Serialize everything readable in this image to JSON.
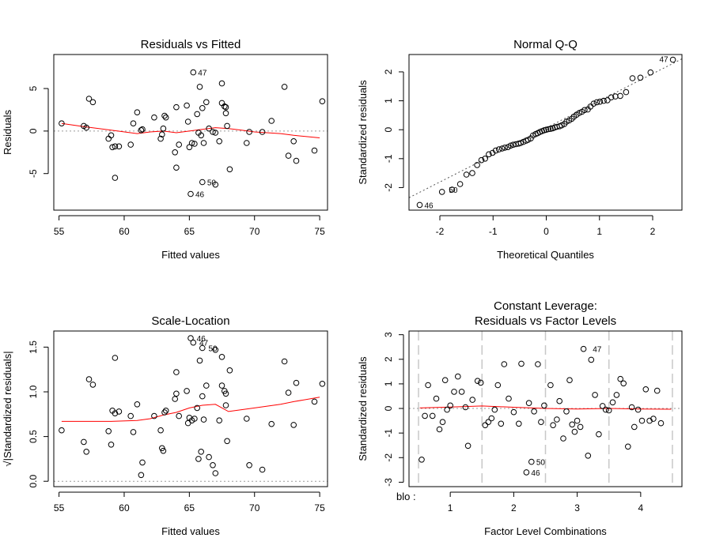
{
  "chart_data": [
    {
      "type": "scatter",
      "title": "Residuals vs Fitted",
      "xlabel": "Fitted values",
      "ylabel": "Residuals",
      "xlim": [
        54.6,
        75.6
      ],
      "ylim": [
        -9.3,
        9.0
      ],
      "xticks": [
        55,
        60,
        65,
        70,
        75
      ],
      "yticks": [
        -5,
        0,
        5
      ],
      "labels": [
        {
          "x": 65.3,
          "y": 6.9,
          "text": "47"
        },
        {
          "x": 66.0,
          "y": -6.0,
          "text": "50"
        },
        {
          "x": 65.1,
          "y": -7.4,
          "text": "46"
        }
      ],
      "smooth": [
        [
          55.2,
          0.9
        ],
        [
          57,
          0.5
        ],
        [
          59,
          0.1
        ],
        [
          61,
          -0.3
        ],
        [
          62,
          -0.1
        ],
        [
          63,
          0.0
        ],
        [
          64,
          -0.2
        ],
        [
          65,
          0.0
        ],
        [
          66,
          0.2
        ],
        [
          67,
          0.4
        ],
        [
          68,
          0.3
        ],
        [
          69,
          0.1
        ],
        [
          70,
          -0.1
        ],
        [
          72,
          -0.3
        ],
        [
          73,
          -0.5
        ],
        [
          75,
          -0.8
        ]
      ],
      "points": [
        [
          55.2,
          0.9
        ],
        [
          56.9,
          0.6
        ],
        [
          57.1,
          0.4
        ],
        [
          57.3,
          3.8
        ],
        [
          57.6,
          3.4
        ],
        [
          58.8,
          -0.9
        ],
        [
          59.0,
          -0.5
        ],
        [
          59.1,
          -1.9
        ],
        [
          59.3,
          -1.8
        ],
        [
          59.3,
          -5.5
        ],
        [
          59.6,
          -1.8
        ],
        [
          60.5,
          -1.6
        ],
        [
          60.7,
          0.9
        ],
        [
          61.0,
          2.2
        ],
        [
          61.3,
          0.1
        ],
        [
          61.4,
          0.2
        ],
        [
          62.3,
          1.6
        ],
        [
          62.8,
          -0.9
        ],
        [
          62.9,
          -0.4
        ],
        [
          63.0,
          0.3
        ],
        [
          63.1,
          1.8
        ],
        [
          63.2,
          1.6
        ],
        [
          63.9,
          -2.5
        ],
        [
          64.0,
          2.8
        ],
        [
          64.0,
          -4.3
        ],
        [
          64.2,
          -1.6
        ],
        [
          64.8,
          3.0
        ],
        [
          64.9,
          1.1
        ],
        [
          65.0,
          -1.9
        ],
        [
          65.1,
          -7.4
        ],
        [
          65.2,
          -1.4
        ],
        [
          65.3,
          6.9
        ],
        [
          65.4,
          -1.5
        ],
        [
          65.6,
          2.0
        ],
        [
          65.7,
          -0.2
        ],
        [
          65.8,
          5.2
        ],
        [
          65.9,
          -0.5
        ],
        [
          66.0,
          -6.0
        ],
        [
          66.0,
          2.7
        ],
        [
          66.1,
          -1.4
        ],
        [
          66.3,
          3.4
        ],
        [
          66.5,
          0.3
        ],
        [
          66.8,
          -0.1
        ],
        [
          67.0,
          -0.2
        ],
        [
          67.0,
          -6.3
        ],
        [
          67.3,
          -1.2
        ],
        [
          67.5,
          5.6
        ],
        [
          67.5,
          3.3
        ],
        [
          67.7,
          2.9
        ],
        [
          67.8,
          2.8
        ],
        [
          67.8,
          2.1
        ],
        [
          67.9,
          0.6
        ],
        [
          68.1,
          -4.5
        ],
        [
          69.4,
          -1.4
        ],
        [
          69.6,
          -0.1
        ],
        [
          70.6,
          -0.1
        ],
        [
          71.3,
          1.2
        ],
        [
          72.3,
          5.2
        ],
        [
          72.6,
          -2.9
        ],
        [
          73.0,
          -1.2
        ],
        [
          73.2,
          -3.5
        ],
        [
          74.6,
          -2.3
        ],
        [
          75.2,
          3.5
        ]
      ]
    },
    {
      "type": "scatter",
      "title": "Normal Q-Q",
      "xlabel": "Theoretical Quantiles",
      "ylabel": "Standardized residuals",
      "xlim": [
        -2.58,
        2.55
      ],
      "ylim": [
        -2.78,
        2.6
      ],
      "xticks": [
        -2,
        -1,
        0,
        1,
        2
      ],
      "yticks": [
        -2,
        -1,
        0,
        1,
        2
      ],
      "labels": [
        {
          "x": 2.38,
          "y": 2.42,
          "text": "47"
        },
        {
          "x": -1.92,
          "y": -2.07,
          "text": "50"
        },
        {
          "x": -2.38,
          "y": -2.6,
          "text": "46"
        }
      ],
      "refline": [
        [
          -2.58,
          -2.35
        ],
        [
          2.55,
          2.45
        ]
      ],
      "points": [
        [
          -2.38,
          -2.6
        ],
        [
          -1.96,
          -2.15
        ],
        [
          -1.77,
          -2.07
        ],
        [
          -1.62,
          -1.88
        ],
        [
          -1.5,
          -1.55
        ],
        [
          -1.39,
          -1.5
        ],
        [
          -1.3,
          -1.22
        ],
        [
          -1.22,
          -1.05
        ],
        [
          -1.15,
          -1.0
        ],
        [
          -1.08,
          -0.85
        ],
        [
          -1.01,
          -0.8
        ],
        [
          -0.95,
          -0.72
        ],
        [
          -0.89,
          -0.68
        ],
        [
          -0.83,
          -0.65
        ],
        [
          -0.78,
          -0.62
        ],
        [
          -0.72,
          -0.6
        ],
        [
          -0.67,
          -0.55
        ],
        [
          -0.62,
          -0.52
        ],
        [
          -0.57,
          -0.5
        ],
        [
          -0.52,
          -0.48
        ],
        [
          -0.48,
          -0.46
        ],
        [
          -0.43,
          -0.42
        ],
        [
          -0.38,
          -0.38
        ],
        [
          -0.34,
          -0.35
        ],
        [
          -0.29,
          -0.3
        ],
        [
          -0.25,
          -0.2
        ],
        [
          -0.2,
          -0.15
        ],
        [
          -0.16,
          -0.12
        ],
        [
          -0.12,
          -0.08
        ],
        [
          -0.08,
          -0.05
        ],
        [
          -0.04,
          -0.02
        ],
        [
          0.0,
          0.0
        ],
        [
          0.04,
          0.02
        ],
        [
          0.08,
          0.03
        ],
        [
          0.12,
          0.05
        ],
        [
          0.16,
          0.08
        ],
        [
          0.2,
          0.1
        ],
        [
          0.25,
          0.12
        ],
        [
          0.29,
          0.15
        ],
        [
          0.34,
          0.2
        ],
        [
          0.38,
          0.28
        ],
        [
          0.43,
          0.32
        ],
        [
          0.48,
          0.38
        ],
        [
          0.52,
          0.45
        ],
        [
          0.57,
          0.52
        ],
        [
          0.62,
          0.58
        ],
        [
          0.67,
          0.62
        ],
        [
          0.72,
          0.68
        ],
        [
          0.78,
          0.7
        ],
        [
          0.83,
          0.8
        ],
        [
          0.89,
          0.9
        ],
        [
          0.95,
          0.95
        ],
        [
          1.01,
          0.97
        ],
        [
          1.08,
          1.0
        ],
        [
          1.15,
          1.02
        ],
        [
          1.22,
          1.12
        ],
        [
          1.3,
          1.15
        ],
        [
          1.39,
          1.17
        ],
        [
          1.5,
          1.3
        ],
        [
          1.62,
          1.78
        ],
        [
          1.77,
          1.8
        ],
        [
          1.96,
          1.98
        ],
        [
          2.38,
          2.42
        ]
      ]
    },
    {
      "type": "scatter",
      "title": "Scale-Location",
      "xlabel": "Fitted values",
      "ylabel": "√|Standardized residuals|",
      "xlim": [
        54.6,
        75.6
      ],
      "ylim": [
        -0.06,
        1.68
      ],
      "xticks": [
        55,
        60,
        65,
        70,
        75
      ],
      "yticks": [
        0.0,
        0.5,
        1.0,
        1.5
      ],
      "labels": [
        {
          "x": 65.2,
          "y": 1.6,
          "text": "46"
        },
        {
          "x": 65.4,
          "y": 1.55,
          "text": "47"
        },
        {
          "x": 66.1,
          "y": 1.49,
          "text": "50"
        }
      ],
      "smooth": [
        [
          55.2,
          0.67
        ],
        [
          57,
          0.67
        ],
        [
          59,
          0.67
        ],
        [
          61,
          0.68
        ],
        [
          62,
          0.7
        ],
        [
          63,
          0.74
        ],
        [
          64,
          0.77
        ],
        [
          65,
          0.82
        ],
        [
          66,
          0.85
        ],
        [
          67,
          0.86
        ],
        [
          68,
          0.78
        ],
        [
          69,
          0.8
        ],
        [
          70,
          0.82
        ],
        [
          72,
          0.86
        ],
        [
          73,
          0.89
        ],
        [
          75,
          0.94
        ]
      ],
      "points": [
        [
          55.2,
          0.57
        ],
        [
          56.9,
          0.44
        ],
        [
          57.1,
          0.33
        ],
        [
          57.3,
          1.14
        ],
        [
          57.6,
          1.08
        ],
        [
          58.8,
          0.56
        ],
        [
          59.0,
          0.41
        ],
        [
          59.1,
          0.79
        ],
        [
          59.3,
          0.76
        ],
        [
          59.3,
          1.38
        ],
        [
          59.6,
          0.78
        ],
        [
          60.5,
          0.73
        ],
        [
          60.7,
          0.55
        ],
        [
          61.0,
          0.86
        ],
        [
          61.3,
          0.07
        ],
        [
          61.4,
          0.21
        ],
        [
          62.3,
          0.73
        ],
        [
          62.8,
          0.57
        ],
        [
          62.9,
          0.37
        ],
        [
          63.0,
          0.34
        ],
        [
          63.1,
          0.77
        ],
        [
          63.2,
          0.79
        ],
        [
          63.9,
          0.92
        ],
        [
          64.0,
          0.98
        ],
        [
          64.0,
          1.22
        ],
        [
          64.2,
          0.73
        ],
        [
          64.8,
          1.01
        ],
        [
          64.9,
          0.65
        ],
        [
          65.0,
          0.71
        ],
        [
          65.1,
          1.6
        ],
        [
          65.2,
          0.68
        ],
        [
          65.3,
          1.55
        ],
        [
          65.4,
          0.7
        ],
        [
          65.6,
          0.82
        ],
        [
          65.7,
          0.25
        ],
        [
          65.8,
          1.35
        ],
        [
          65.9,
          0.33
        ],
        [
          66.0,
          1.49
        ],
        [
          66.0,
          0.95
        ],
        [
          66.1,
          0.69
        ],
        [
          66.3,
          1.07
        ],
        [
          66.5,
          0.27
        ],
        [
          66.8,
          0.18
        ],
        [
          67.0,
          0.09
        ],
        [
          67.0,
          1.47
        ],
        [
          67.3,
          0.68
        ],
        [
          67.5,
          1.39
        ],
        [
          67.5,
          1.07
        ],
        [
          67.7,
          1.01
        ],
        [
          67.8,
          0.98
        ],
        [
          67.8,
          0.85
        ],
        [
          67.9,
          0.45
        ],
        [
          68.1,
          1.24
        ],
        [
          69.4,
          0.7
        ],
        [
          69.6,
          0.18
        ],
        [
          70.6,
          0.13
        ],
        [
          71.3,
          0.64
        ],
        [
          72.3,
          1.34
        ],
        [
          72.6,
          0.99
        ],
        [
          73.0,
          0.63
        ],
        [
          73.2,
          1.1
        ],
        [
          74.6,
          0.89
        ],
        [
          75.2,
          1.09
        ]
      ]
    },
    {
      "type": "scatter",
      "title": "Constant Leverage:",
      "subtitle": "Residuals vs Factor Levels",
      "xlabel": "Factor Level Combinations",
      "ylabel": "Standardized residuals",
      "factor_name": "blo :",
      "xlim": [
        0.35,
        4.65
      ],
      "ylim": [
        -3.18,
        3.15
      ],
      "xticks": [
        1,
        2,
        3,
        4
      ],
      "yticks": [
        -3,
        -2,
        -1,
        0,
        1,
        2,
        3
      ],
      "vlines": [
        0.5,
        1.5,
        2.5,
        3.5,
        4.5
      ],
      "labels": [
        {
          "x": 2.28,
          "y": -2.17,
          "text": "50"
        },
        {
          "x": 2.2,
          "y": -2.6,
          "text": "46"
        },
        {
          "x": 3.17,
          "y": 2.42,
          "text": "47"
        }
      ],
      "smooth": [
        [
          0.52,
          0.02
        ],
        [
          1.0,
          0.06
        ],
        [
          1.5,
          0.1
        ],
        [
          2.0,
          0.05
        ],
        [
          2.5,
          0.0
        ],
        [
          3.0,
          -0.02
        ],
        [
          3.5,
          0.0
        ],
        [
          4.0,
          -0.02
        ],
        [
          4.48,
          -0.03
        ]
      ],
      "points": [
        [
          0.55,
          -2.08
        ],
        [
          0.6,
          -0.3
        ],
        [
          0.65,
          0.95
        ],
        [
          0.72,
          -0.3
        ],
        [
          0.78,
          0.4
        ],
        [
          0.83,
          -0.85
        ],
        [
          0.88,
          -0.55
        ],
        [
          0.92,
          1.15
        ],
        [
          0.95,
          -0.05
        ],
        [
          1.0,
          0.12
        ],
        [
          1.06,
          0.68
        ],
        [
          1.12,
          1.3
        ],
        [
          1.18,
          0.68
        ],
        [
          1.24,
          0.05
        ],
        [
          1.28,
          -1.52
        ],
        [
          1.35,
          0.35
        ],
        [
          1.43,
          1.12
        ],
        [
          1.48,
          1.05
        ],
        [
          1.55,
          -0.68
        ],
        [
          1.6,
          -0.55
        ],
        [
          1.65,
          -0.4
        ],
        [
          1.7,
          -0.05
        ],
        [
          1.75,
          0.95
        ],
        [
          1.8,
          -0.62
        ],
        [
          1.85,
          1.8
        ],
        [
          1.92,
          0.4
        ],
        [
          2.0,
          -0.15
        ],
        [
          2.08,
          -0.62
        ],
        [
          2.12,
          1.82
        ],
        [
          2.2,
          -2.6
        ],
        [
          2.24,
          0.22
        ],
        [
          2.28,
          -2.17
        ],
        [
          2.32,
          -0.12
        ],
        [
          2.38,
          1.8
        ],
        [
          2.43,
          -0.55
        ],
        [
          2.48,
          0.12
        ],
        [
          2.58,
          0.95
        ],
        [
          2.62,
          -0.68
        ],
        [
          2.68,
          -0.45
        ],
        [
          2.72,
          0.3
        ],
        [
          2.78,
          -1.22
        ],
        [
          2.83,
          -0.12
        ],
        [
          2.88,
          1.15
        ],
        [
          2.92,
          -0.65
        ],
        [
          2.96,
          -0.95
        ],
        [
          3.0,
          -0.5
        ],
        [
          3.05,
          -0.75
        ],
        [
          3.1,
          2.42
        ],
        [
          3.17,
          -1.92
        ],
        [
          3.22,
          1.98
        ],
        [
          3.28,
          0.55
        ],
        [
          3.34,
          -1.05
        ],
        [
          3.4,
          0.1
        ],
        [
          3.45,
          -0.05
        ],
        [
          3.5,
          -0.08
        ],
        [
          3.56,
          0.25
        ],
        [
          3.62,
          0.55
        ],
        [
          3.68,
          1.2
        ],
        [
          3.73,
          1.02
        ],
        [
          3.8,
          -1.55
        ],
        [
          3.86,
          0.05
        ],
        [
          3.9,
          -0.75
        ],
        [
          3.96,
          -0.05
        ],
        [
          4.02,
          -0.5
        ],
        [
          4.08,
          0.78
        ],
        [
          4.14,
          -0.5
        ],
        [
          4.2,
          -0.42
        ],
        [
          4.26,
          0.72
        ],
        [
          4.32,
          -0.6
        ]
      ]
    }
  ]
}
